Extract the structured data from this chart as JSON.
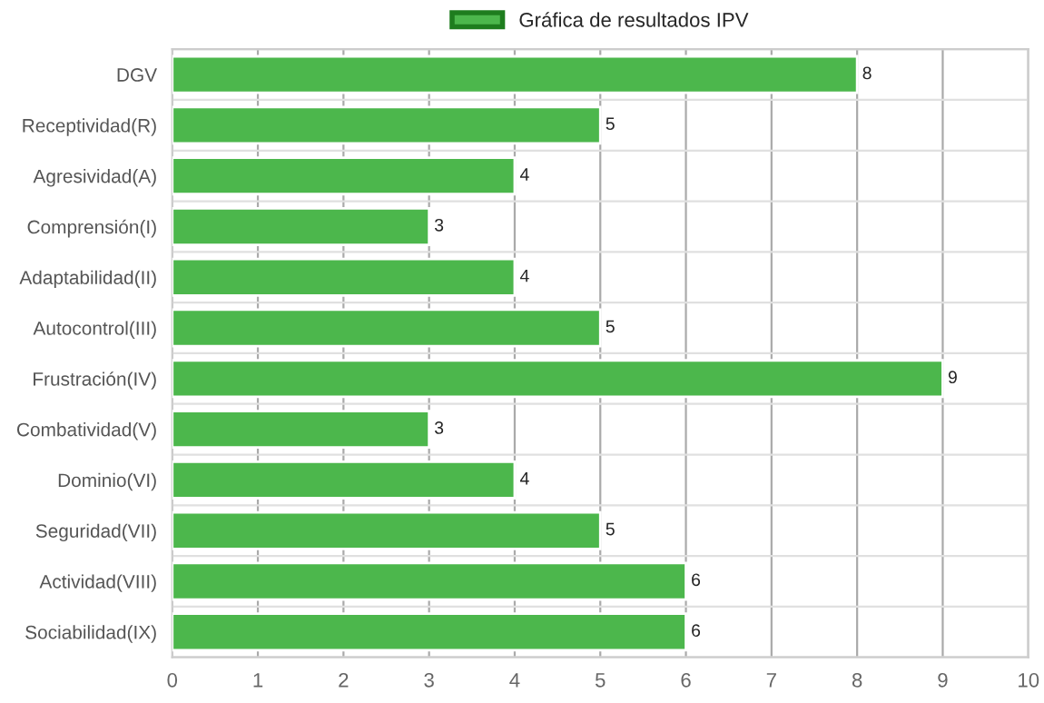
{
  "chart_data": {
    "type": "bar",
    "orientation": "horizontal",
    "categories": [
      "DGV",
      "Receptividad(R)",
      "Agresividad(A)",
      "Comprensión(I)",
      "Adaptabilidad(II)",
      "Autocontrol(III)",
      "Frustración(IV)",
      "Combatividad(V)",
      "Dominio(VI)",
      "Seguridad(VII)",
      "Actividad(VIII)",
      "Sociabilidad(IX)"
    ],
    "series": [
      {
        "name": "Gráfica de resultados IPV",
        "color": "#4cb74c",
        "values": [
          8,
          5,
          4,
          3,
          4,
          5,
          9,
          3,
          4,
          5,
          6,
          6
        ]
      }
    ],
    "xlim": [
      0,
      10
    ],
    "xticks": [
      0,
      1,
      2,
      3,
      4,
      5,
      6,
      7,
      8,
      9,
      10
    ],
    "data_labels": true,
    "grid": true,
    "legend": "top"
  }
}
